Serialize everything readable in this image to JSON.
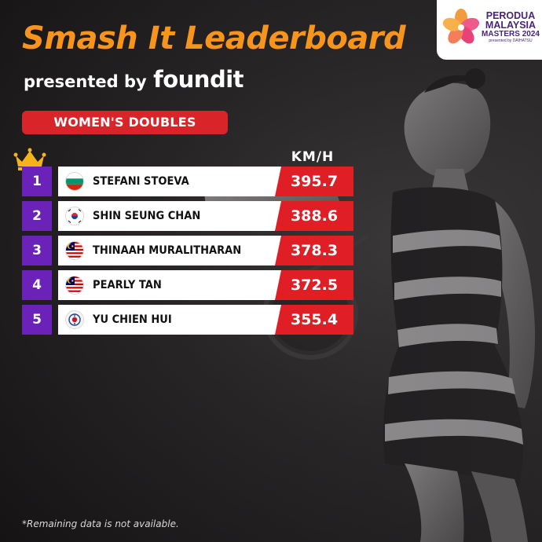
{
  "header": {
    "title": "Smash It Leaderboard",
    "presented_by": "presented by",
    "sponsor_logo_text": "foundit"
  },
  "event_logo": {
    "line1": "PERODUA",
    "line2": "MALAYSIA",
    "line3": "MASTERS 2024",
    "line4": "presented by DAIHATSU"
  },
  "category": "WOMEN'S DOUBLES",
  "unit_label": "KM/H",
  "leaderboard": [
    {
      "rank": "1",
      "name": "STEFANI STOEVA",
      "flag": "bulgaria-flag-icon",
      "speed": "395.7"
    },
    {
      "rank": "2",
      "name": "SHIN SEUNG CHAN",
      "flag": "south-korea-flag-icon",
      "speed": "388.6"
    },
    {
      "rank": "3",
      "name": "THINAAH MURALITHARAN",
      "flag": "malaysia-flag-icon",
      "speed": "378.3"
    },
    {
      "rank": "4",
      "name": "PEARLY TAN",
      "flag": "malaysia-flag-icon",
      "speed": "372.5"
    },
    {
      "rank": "5",
      "name": "YU CHIEN HUI",
      "flag": "chinese-taipei-flag-icon",
      "speed": "355.4"
    }
  ],
  "footnote": "*Remaining data is not available.",
  "colors": {
    "title": "#f7941d",
    "accent_red": "#e01e26",
    "rank_purple": "#6a22b8",
    "crown_gold": "#f5b21b",
    "background": "#1c1a1b"
  },
  "icons": {
    "crown": "crown-icon",
    "event_logo": "flower-logo-icon"
  }
}
